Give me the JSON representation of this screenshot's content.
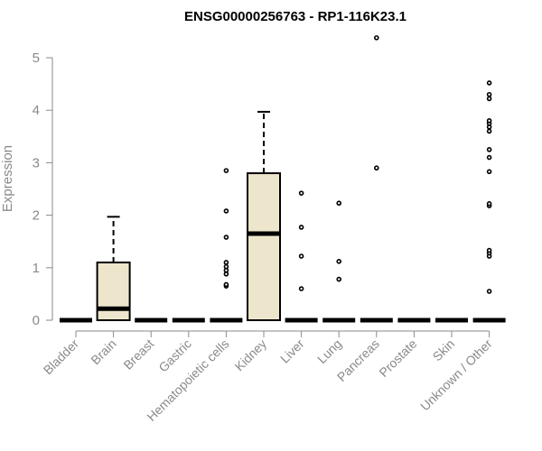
{
  "chart_data": {
    "type": "box",
    "title": "ENSG00000256763 - RP1-116K23.1",
    "xlabel": "",
    "ylabel": "Expression",
    "ylim": [
      0,
      5
    ],
    "yticks": [
      0,
      1,
      2,
      3,
      4,
      5
    ],
    "grid": false,
    "box_fill": "#ede6cc",
    "categories": [
      "Bladder",
      "Brain",
      "Breast",
      "Gastric",
      "Hematopoietic cells",
      "Kidney",
      "Liver",
      "Lung",
      "Pancreas",
      "Prostate",
      "Skin",
      "Unknown / Other"
    ],
    "boxes": [
      {
        "min": 0,
        "q1": 0,
        "median": 0,
        "q3": 0,
        "max": 0,
        "outliers": []
      },
      {
        "min": 0,
        "q1": 0,
        "median": 0.22,
        "q3": 1.1,
        "max": 1.97,
        "outliers": []
      },
      {
        "min": 0,
        "q1": 0,
        "median": 0,
        "q3": 0,
        "max": 0,
        "outliers": []
      },
      {
        "min": 0,
        "q1": 0,
        "median": 0,
        "q3": 0,
        "max": 0,
        "outliers": []
      },
      {
        "min": 0,
        "q1": 0,
        "median": 0,
        "q3": 0,
        "max": 0,
        "outliers": [
          0.65,
          0.68,
          0.88,
          0.95,
          1.02,
          1.1,
          1.58,
          2.08,
          2.85
        ]
      },
      {
        "min": 0,
        "q1": 0,
        "median": 1.65,
        "q3": 2.8,
        "max": 3.97,
        "outliers": []
      },
      {
        "min": 0,
        "q1": 0,
        "median": 0,
        "q3": 0,
        "max": 0,
        "outliers": [
          0.6,
          1.22,
          1.77,
          2.42
        ]
      },
      {
        "min": 0,
        "q1": 0,
        "median": 0,
        "q3": 0,
        "max": 0,
        "outliers": [
          0.78,
          1.12,
          2.23
        ]
      },
      {
        "min": 0,
        "q1": 0,
        "median": 0,
        "q3": 0,
        "max": 0,
        "outliers": [
          2.9,
          5.38
        ]
      },
      {
        "min": 0,
        "q1": 0,
        "median": 0,
        "q3": 0,
        "max": 0,
        "outliers": []
      },
      {
        "min": 0,
        "q1": 0,
        "median": 0,
        "q3": 0,
        "max": 0,
        "outliers": []
      },
      {
        "min": 0,
        "q1": 0,
        "median": 0,
        "q3": 0,
        "max": 0,
        "outliers": [
          0.55,
          1.22,
          1.28,
          1.33,
          2.18,
          2.22,
          2.83,
          3.1,
          3.25,
          3.6,
          3.68,
          3.75,
          3.8,
          4.22,
          4.3,
          4.52
        ]
      }
    ]
  }
}
